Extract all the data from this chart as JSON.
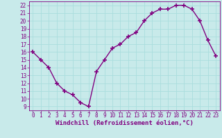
{
  "x": [
    0,
    1,
    2,
    3,
    4,
    5,
    6,
    7,
    8,
    9,
    10,
    11,
    12,
    13,
    14,
    15,
    16,
    17,
    18,
    19,
    20,
    21,
    22,
    23
  ],
  "y": [
    16,
    15,
    14,
    12,
    11,
    10.5,
    9.5,
    9,
    13.5,
    15,
    16.5,
    17,
    18,
    18.5,
    20,
    21,
    21.5,
    21.5,
    22,
    22,
    21.5,
    20,
    17.5,
    15.5
  ],
  "line_color": "#800080",
  "marker": "+",
  "marker_size": 5,
  "marker_lw": 1.2,
  "bg_color": "#c8eaea",
  "grid_color": "#aadddd",
  "xlabel": "Windchill (Refroidissement éolien,°C)",
  "xlabel_color": "#800080",
  "tick_color": "#800080",
  "axis_color": "#800080",
  "ylim": [
    8.5,
    22.5
  ],
  "xlim": [
    -0.5,
    23.5
  ],
  "yticks": [
    9,
    10,
    11,
    12,
    13,
    14,
    15,
    16,
    17,
    18,
    19,
    20,
    21,
    22
  ],
  "xticks": [
    0,
    1,
    2,
    3,
    4,
    5,
    6,
    7,
    8,
    9,
    10,
    11,
    12,
    13,
    14,
    15,
    16,
    17,
    18,
    19,
    20,
    21,
    22,
    23
  ],
  "tick_fontsize": 5.5,
  "xlabel_fontsize": 6.5,
  "line_width": 1.0
}
